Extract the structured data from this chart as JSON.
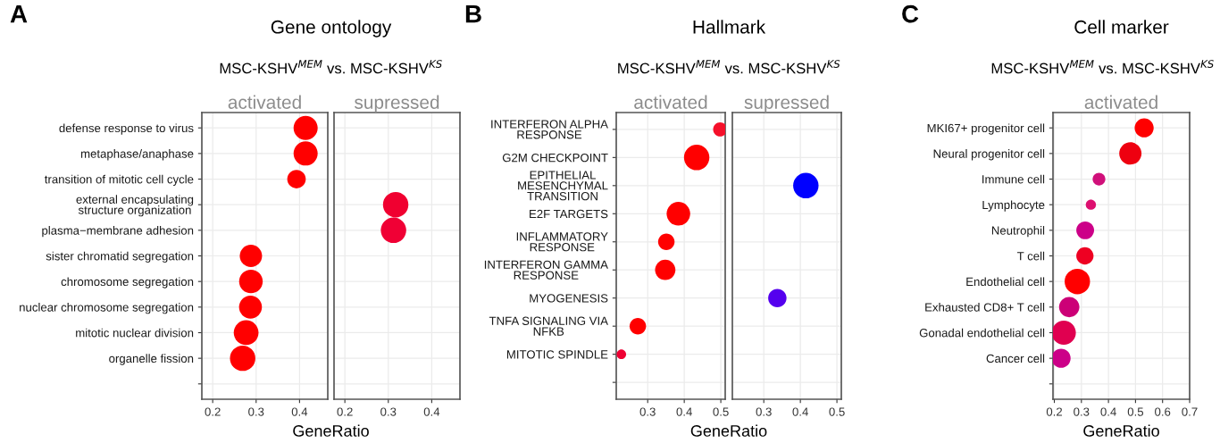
{
  "chart_data": [
    {
      "type": "bubble",
      "orientation": "horizontal",
      "grid": true,
      "annotations": [
        "A",
        "Gene ontology",
        "MSC-KSHV$^{MEM}$ vs. MSC-KSHV$^{KS}$"
      ],
      "title": "activated",
      "xlabel": "GeneRatio",
      "categories": [
        "defense response to virus",
        "metaphase/anaphase",
        "transition of mitotic cell cycle",
        "external encapsulating\nstructure organization",
        "plasma−membrane adhesion",
        "sister chromatid segregation",
        "chromosome segregation",
        "nuclear chromosome segregation",
        "mitotic nuclear division",
        "organelle fission",
        null
      ],
      "values": [
        0.414,
        0.414,
        0.393,
        null,
        null,
        0.288,
        0.288,
        0.287,
        0.277,
        0.269,
        null
      ],
      "sizes": [
        0.9,
        0.9,
        0.53,
        null,
        null,
        0.77,
        0.86,
        0.81,
        0.95,
        1,
        null
      ],
      "colors": [
        "#ff0000",
        "#ff0000",
        "#ff0000",
        null,
        null,
        "#ff0000",
        "#ff0000",
        "#ff0000",
        "#ff0000",
        "#ff0000",
        null
      ],
      "xlim": [
        0.175,
        0.465
      ],
      "xticks": [
        0.2,
        0.3,
        0.4
      ]
    },
    {
      "type": "bubble",
      "orientation": "horizontal",
      "grid": true,
      "tick_labels": "x",
      "title": "supressed",
      "values": [
        null,
        null,
        null,
        0.317,
        0.312,
        null,
        null,
        null,
        null,
        null,
        null
      ],
      "sizes": [
        null,
        null,
        null,
        1,
        1,
        null,
        null,
        null,
        null,
        null,
        null
      ],
      "colors": [
        null,
        null,
        null,
        "#f00030",
        "#f00035",
        null,
        null,
        null,
        null,
        null,
        null
      ],
      "xlim": [
        0.175,
        0.465
      ],
      "xticks": [
        0.2,
        0.3,
        0.4
      ]
    },
    {
      "type": "bubble",
      "orientation": "horizontal",
      "grid": true,
      "annotations": [
        "B",
        "Hallmark",
        "MSC-KSHV$^{MEM}$ vs. MSC-KSHV$^{KS}$"
      ],
      "title": "activated",
      "xlabel": "GeneRatio",
      "categories": [
        "INTERFERON ALPHA\nRESPONSE",
        "G2M CHECKPOINT",
        "EPITHELIAL\nMESENCHYMAL\nTRANSITION",
        "E2F TARGETS",
        "INFLAMMATORY\nRESPONSE",
        "INTERFERON GAMMA\nRESPONSE",
        "MYOGENESIS",
        "TNFA SIGNALING VIA\nNFKB",
        "MITOTIC SPINDLE",
        null
      ],
      "values": [
        0.498,
        0.434,
        null,
        0.384,
        0.351,
        0.348,
        null,
        0.273,
        0.228,
        null
      ],
      "sizes": [
        0.3,
        1,
        null,
        0.86,
        0.42,
        0.64,
        null,
        0.42,
        0.14,
        null
      ],
      "colors": [
        "#f5102a",
        "#ff0000",
        null,
        "#ff0000",
        "#ff0000",
        "#ff0000",
        null,
        "#ff0000",
        "#ee0033",
        null
      ],
      "xlim": [
        0.214,
        0.512
      ],
      "xticks": [
        0.3,
        0.4,
        0.5
      ]
    },
    {
      "type": "bubble",
      "orientation": "horizontal",
      "grid": true,
      "tick_labels": "x",
      "title": "supressed",
      "values": [
        null,
        null,
        0.415,
        null,
        null,
        null,
        0.337,
        null,
        null,
        null
      ],
      "sizes": [
        null,
        null,
        1,
        null,
        null,
        null,
        0.52,
        null,
        null,
        null
      ],
      "colors": [
        null,
        null,
        "#0000ff",
        null,
        null,
        null,
        "#5500ee",
        null,
        null,
        null
      ],
      "xlim": [
        0.214,
        0.512
      ],
      "xticks": [
        0.3,
        0.4,
        0.5
      ]
    },
    {
      "type": "bubble",
      "orientation": "horizontal",
      "grid": true,
      "annotations": [
        "C",
        "Cell marker",
        "MSC-KSHV$^{MEM}$ vs. MSC-KSHV$^{KS}$"
      ],
      "title": "activated",
      "xlabel": "GeneRatio",
      "categories": [
        "MKI67+ progenitor cell",
        "Neural progenitor cell",
        "Immune cell",
        "Lymphocyte",
        "Neutrophil",
        "T cell",
        "Endothelial cell",
        "Exhausted CD8+ T cell",
        "Gonadal endothelial cell",
        "Cancer cell",
        null
      ],
      "values": [
        0.532,
        0.481,
        0.365,
        0.335,
        0.314,
        0.313,
        0.285,
        0.255,
        0.235,
        0.225,
        null
      ],
      "sizes": [
        0.56,
        0.77,
        0.25,
        0.16,
        0.49,
        0.46,
        1,
        0.64,
        0.9,
        0.56,
        null
      ],
      "colors": [
        "#ff0000",
        "#ee0010",
        "#d0107a",
        "#dd1070",
        "#cc0088",
        "#ee0022",
        "#ff0000",
        "#cc0077",
        "#e00050",
        "#cc0088",
        null
      ],
      "xlim": [
        0.195,
        0.7
      ],
      "xticks": [
        0.2,
        0.3,
        0.4,
        0.5,
        0.6,
        0.7
      ]
    }
  ]
}
